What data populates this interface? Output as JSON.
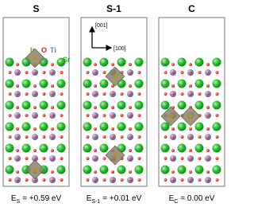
{
  "panels": [
    {
      "title": "S",
      "energy_symbol": "E",
      "energy_subscript": "S",
      "energy_value": "= +0.59 eV"
    },
    {
      "title": "S-1",
      "energy_symbol": "E",
      "energy_subscript": "S-1",
      "energy_value": "= +0.01 eV"
    },
    {
      "title": "C",
      "energy_symbol": "E",
      "energy_subscript": "C",
      "energy_value": "= 0.00 eV"
    }
  ],
  "legend": {
    "ir": "Ir",
    "o": "O",
    "ti": "Ti",
    "sr": "Sr"
  },
  "axes": {
    "vertical": "[001]",
    "horizontal": "[100]"
  }
}
